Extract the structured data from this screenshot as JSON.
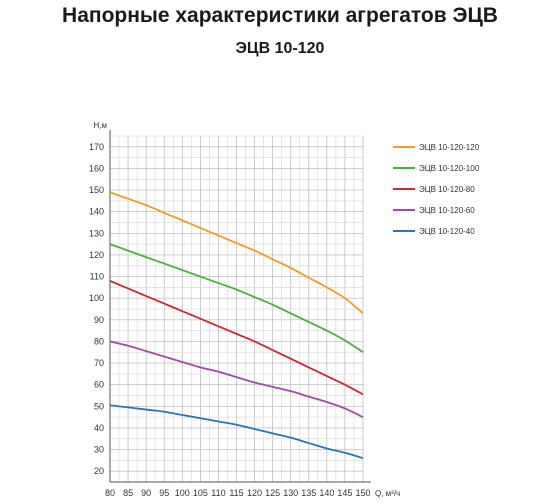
{
  "chart_data": {
    "type": "line",
    "title": "Напорные характеристики агрегатов ЭЦВ",
    "subtitle": "ЭЦВ 10-120",
    "xlabel": "Q, м³/ч",
    "ylabel": "H,м",
    "x": [
      80,
      85,
      90,
      95,
      100,
      105,
      110,
      115,
      120,
      125,
      130,
      135,
      140,
      145,
      150
    ],
    "xlim": [
      80,
      150
    ],
    "ylim": [
      15,
      175
    ],
    "y_ticks": [
      20,
      30,
      40,
      50,
      60,
      70,
      80,
      90,
      100,
      110,
      120,
      130,
      140,
      150,
      160,
      170
    ],
    "grid": true,
    "legend_position": "right",
    "series": [
      {
        "name": "ЭЦВ 10-120-120",
        "color": "#f39a25",
        "values": [
          149,
          146,
          143,
          139.5,
          136,
          132.5,
          129,
          125.5,
          122,
          118,
          114,
          109.5,
          105,
          100,
          93
        ]
      },
      {
        "name": "ЭЦВ 10-120-100",
        "color": "#4caf3a",
        "values": [
          125,
          122,
          119,
          116,
          113,
          110,
          107,
          104,
          100.5,
          97,
          93,
          89,
          85,
          80.5,
          75
        ]
      },
      {
        "name": "ЭЦВ 10-120-80",
        "color": "#d3262e",
        "values": [
          108,
          104.5,
          101,
          97.5,
          94,
          90.5,
          87,
          83.5,
          80,
          76,
          72,
          68,
          64,
          60,
          55.5
        ]
      },
      {
        "name": "ЭЦВ 10-120-60",
        "color": "#a24aa8",
        "values": [
          80,
          78,
          75.5,
          73,
          70.5,
          68,
          66,
          63.5,
          61,
          59,
          57,
          54.5,
          52,
          49,
          45
        ]
      },
      {
        "name": "ЭЦВ 10-120-40",
        "color": "#2b74b8",
        "values": [
          50.5,
          49.5,
          48.5,
          47.5,
          46,
          44.5,
          43,
          41.5,
          39.5,
          37.5,
          35.5,
          33,
          30.5,
          28.5,
          26
        ]
      }
    ]
  }
}
